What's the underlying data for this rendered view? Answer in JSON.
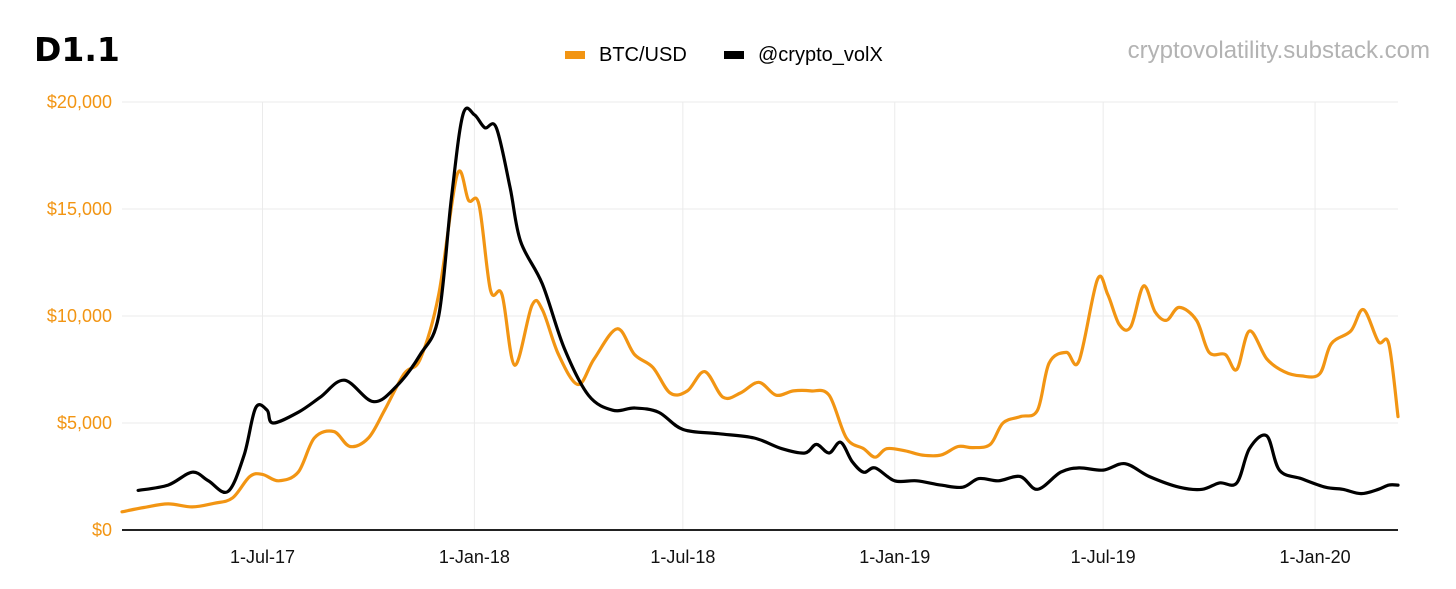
{
  "header": {
    "title": "D1.1",
    "source": "cryptovolatility.substack.com"
  },
  "colors": {
    "btc": "#F29513",
    "vol": "#000000",
    "grid": "#EBEBEB",
    "axis": "#222222"
  },
  "chart_data": {
    "type": "line",
    "title": "D1.1",
    "xlabel": "",
    "ylabel": "",
    "xlim": [
      "2017-03-01",
      "2020-03-13"
    ],
    "ylim": [
      0,
      20000
    ],
    "grid": true,
    "legend": "top-center",
    "y_ticks": [
      {
        "value": 0,
        "label": "$0"
      },
      {
        "value": 5000,
        "label": "$5,000"
      },
      {
        "value": 10000,
        "label": "$10,000"
      },
      {
        "value": 15000,
        "label": "$15,000"
      },
      {
        "value": 20000,
        "label": "$20,000"
      }
    ],
    "x_ticks": [
      {
        "value": "2017-07-01",
        "label": "1-Jul-17"
      },
      {
        "value": "2018-01-01",
        "label": "1-Jan-18"
      },
      {
        "value": "2018-07-01",
        "label": "1-Jul-18"
      },
      {
        "value": "2019-01-01",
        "label": "1-Jan-19"
      },
      {
        "value": "2019-07-01",
        "label": "1-Jul-19"
      },
      {
        "value": "2020-01-01",
        "label": "1-Jan-20"
      }
    ],
    "series": [
      {
        "name": "BTC/USD",
        "color": "#F29513",
        "points": [
          [
            "2017-03-01",
            850
          ],
          [
            "2017-03-20",
            1050
          ],
          [
            "2017-04-10",
            1220
          ],
          [
            "2017-05-01",
            1080
          ],
          [
            "2017-05-20",
            1250
          ],
          [
            "2017-06-05",
            1500
          ],
          [
            "2017-06-20",
            2500
          ],
          [
            "2017-07-01",
            2600
          ],
          [
            "2017-07-15",
            2300
          ],
          [
            "2017-08-01",
            2700
          ],
          [
            "2017-08-15",
            4300
          ],
          [
            "2017-09-01",
            4600
          ],
          [
            "2017-09-15",
            3900
          ],
          [
            "2017-10-01",
            4300
          ],
          [
            "2017-10-15",
            5600
          ],
          [
            "2017-11-01",
            7300
          ],
          [
            "2017-11-15",
            8000
          ],
          [
            "2017-12-01",
            11000
          ],
          [
            "2017-12-17",
            16600
          ],
          [
            "2017-12-27",
            15400
          ],
          [
            "2018-01-05",
            15200
          ],
          [
            "2018-01-15",
            11200
          ],
          [
            "2018-01-25",
            11000
          ],
          [
            "2018-02-05",
            7700
          ],
          [
            "2018-02-20",
            10500
          ],
          [
            "2018-03-01",
            10300
          ],
          [
            "2018-03-15",
            8200
          ],
          [
            "2018-04-01",
            6800
          ],
          [
            "2018-04-15",
            8000
          ],
          [
            "2018-05-05",
            9400
          ],
          [
            "2018-05-20",
            8200
          ],
          [
            "2018-06-05",
            7600
          ],
          [
            "2018-06-20",
            6400
          ],
          [
            "2018-07-05",
            6500
          ],
          [
            "2018-07-20",
            7400
          ],
          [
            "2018-08-05",
            6200
          ],
          [
            "2018-08-20",
            6400
          ],
          [
            "2018-09-05",
            6900
          ],
          [
            "2018-09-20",
            6300
          ],
          [
            "2018-10-05",
            6500
          ],
          [
            "2018-10-20",
            6500
          ],
          [
            "2018-11-05",
            6300
          ],
          [
            "2018-11-20",
            4300
          ],
          [
            "2018-12-05",
            3800
          ],
          [
            "2018-12-15",
            3400
          ],
          [
            "2018-12-25",
            3800
          ],
          [
            "2019-01-10",
            3700
          ],
          [
            "2019-01-25",
            3500
          ],
          [
            "2019-02-10",
            3500
          ],
          [
            "2019-02-25",
            3900
          ],
          [
            "2019-03-10",
            3850
          ],
          [
            "2019-03-25",
            4000
          ],
          [
            "2019-04-05",
            5000
          ],
          [
            "2019-04-20",
            5300
          ],
          [
            "2019-05-05",
            5600
          ],
          [
            "2019-05-15",
            7800
          ],
          [
            "2019-05-30",
            8300
          ],
          [
            "2019-06-10",
            7900
          ],
          [
            "2019-06-26",
            11700
          ],
          [
            "2019-07-05",
            11000
          ],
          [
            "2019-07-15",
            9600
          ],
          [
            "2019-07-25",
            9500
          ],
          [
            "2019-08-05",
            11400
          ],
          [
            "2019-08-15",
            10200
          ],
          [
            "2019-08-25",
            9800
          ],
          [
            "2019-09-05",
            10400
          ],
          [
            "2019-09-20",
            9800
          ],
          [
            "2019-10-01",
            8300
          ],
          [
            "2019-10-15",
            8200
          ],
          [
            "2019-10-25",
            7500
          ],
          [
            "2019-11-05",
            9300
          ],
          [
            "2019-11-20",
            8000
          ],
          [
            "2019-12-05",
            7400
          ],
          [
            "2019-12-20",
            7200
          ],
          [
            "2020-01-05",
            7300
          ],
          [
            "2020-01-15",
            8700
          ],
          [
            "2020-02-01",
            9300
          ],
          [
            "2020-02-12",
            10300
          ],
          [
            "2020-02-25",
            8800
          ],
          [
            "2020-03-05",
            8700
          ],
          [
            "2020-03-13",
            5300
          ]
        ]
      },
      {
        "name": "@crypto_volX",
        "color": "#000000",
        "points": [
          [
            "2017-03-15",
            1850
          ],
          [
            "2017-04-10",
            2100
          ],
          [
            "2017-05-01",
            2700
          ],
          [
            "2017-05-15",
            2300
          ],
          [
            "2017-06-01",
            1800
          ],
          [
            "2017-06-15",
            3500
          ],
          [
            "2017-06-25",
            5700
          ],
          [
            "2017-07-05",
            5600
          ],
          [
            "2017-07-10",
            5000
          ],
          [
            "2017-08-01",
            5500
          ],
          [
            "2017-08-20",
            6200
          ],
          [
            "2017-09-10",
            7000
          ],
          [
            "2017-10-05",
            6000
          ],
          [
            "2017-10-25",
            6700
          ],
          [
            "2017-11-15",
            8200
          ],
          [
            "2017-12-01",
            10000
          ],
          [
            "2017-12-12",
            15500
          ],
          [
            "2017-12-22",
            19400
          ],
          [
            "2018-01-01",
            19400
          ],
          [
            "2018-01-10",
            18800
          ],
          [
            "2018-01-20",
            18800
          ],
          [
            "2018-02-01",
            16000
          ],
          [
            "2018-02-10",
            13500
          ],
          [
            "2018-03-01",
            11500
          ],
          [
            "2018-03-20",
            8500
          ],
          [
            "2018-04-10",
            6300
          ],
          [
            "2018-05-01",
            5600
          ],
          [
            "2018-05-20",
            5700
          ],
          [
            "2018-06-10",
            5500
          ],
          [
            "2018-07-01",
            4700
          ],
          [
            "2018-08-01",
            4500
          ],
          [
            "2018-09-01",
            4300
          ],
          [
            "2018-09-25",
            3800
          ],
          [
            "2018-10-15",
            3600
          ],
          [
            "2018-10-25",
            4000
          ],
          [
            "2018-11-05",
            3600
          ],
          [
            "2018-11-15",
            4100
          ],
          [
            "2018-11-25",
            3200
          ],
          [
            "2018-12-05",
            2700
          ],
          [
            "2018-12-15",
            2900
          ],
          [
            "2019-01-01",
            2300
          ],
          [
            "2019-01-20",
            2300
          ],
          [
            "2019-02-10",
            2100
          ],
          [
            "2019-03-01",
            2000
          ],
          [
            "2019-03-15",
            2400
          ],
          [
            "2019-04-01",
            2300
          ],
          [
            "2019-04-20",
            2500
          ],
          [
            "2019-05-05",
            1900
          ],
          [
            "2019-05-25",
            2700
          ],
          [
            "2019-06-10",
            2900
          ],
          [
            "2019-07-01",
            2800
          ],
          [
            "2019-07-20",
            3100
          ],
          [
            "2019-08-10",
            2500
          ],
          [
            "2019-09-05",
            2000
          ],
          [
            "2019-09-25",
            1900
          ],
          [
            "2019-10-10",
            2200
          ],
          [
            "2019-10-25",
            2200
          ],
          [
            "2019-11-05",
            3800
          ],
          [
            "2019-11-20",
            4400
          ],
          [
            "2019-12-01",
            2800
          ],
          [
            "2019-12-20",
            2400
          ],
          [
            "2020-01-10",
            2000
          ],
          [
            "2020-01-25",
            1900
          ],
          [
            "2020-02-10",
            1700
          ],
          [
            "2020-02-25",
            1900
          ],
          [
            "2020-03-05",
            2100
          ],
          [
            "2020-03-13",
            2100
          ]
        ]
      }
    ]
  }
}
